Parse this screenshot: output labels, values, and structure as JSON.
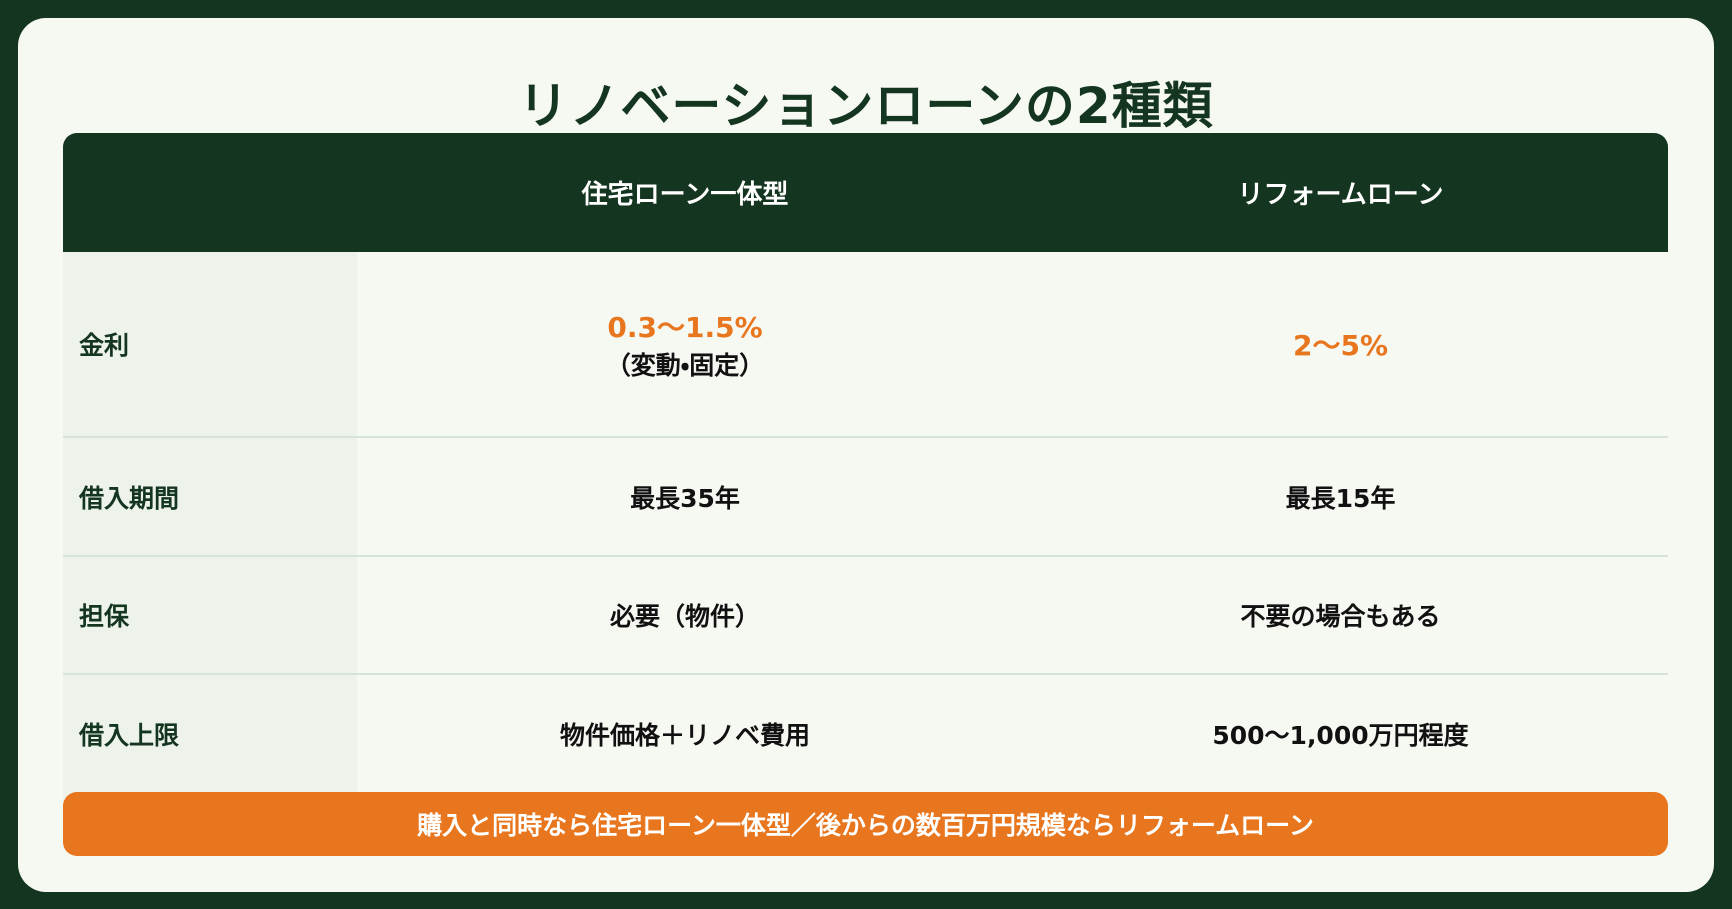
{
  "title": "リノベーションローンの2種類",
  "table": {
    "columns": [
      "住宅ローン一体型",
      "リフォームローン"
    ],
    "rows": [
      {
        "label": "金利",
        "cells": [
          {
            "main": "0.3〜1.5%",
            "sub": "（変動・固定）"
          },
          {
            "main": "2〜5%"
          }
        ]
      },
      {
        "label": "借入期間",
        "cells": [
          "最長35年",
          "最長15年"
        ]
      },
      {
        "label": "担保",
        "cells": [
          "必要（物件）",
          "不要の場合もある"
        ]
      },
      {
        "label": "借入上限",
        "cells": [
          "物件価格＋リノベ費用",
          "500〜1,000万円程度"
        ]
      }
    ]
  },
  "footer": "購入と同時なら住宅ローン一体型／後からの数百万円規模ならリフォームローン"
}
